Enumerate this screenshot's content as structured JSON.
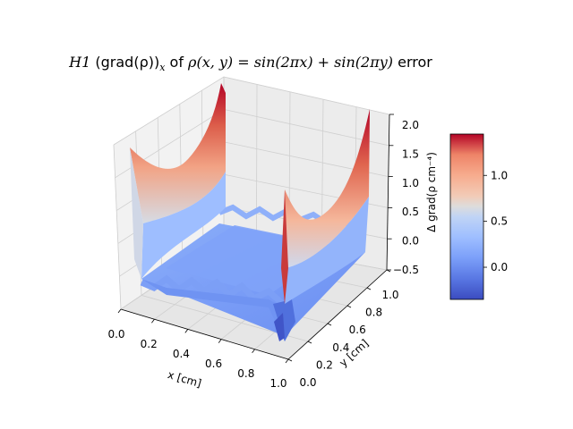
{
  "title": {
    "prefix": "H1",
    "grad": "(grad(ρ))",
    "sub": "x",
    "of": "of",
    "func": "ρ(x, y) = sin(2πx) + sin(2πy)",
    "suffix": "error"
  },
  "chart_data": {
    "type": "surface3d",
    "xlabel": "x [cm]",
    "ylabel": "y [cm]",
    "zlabel": "Δ grad(ρ cm⁻⁴)",
    "xlim": [
      0.0,
      1.0
    ],
    "ylim": [
      0.0,
      1.0
    ],
    "zlim": [
      -0.5,
      2.0
    ],
    "x_ticks": [
      "0.0",
      "0.2",
      "0.4",
      "0.6",
      "0.8",
      "1.0"
    ],
    "y_ticks": [
      "0.0",
      "0.2",
      "0.4",
      "0.6",
      "0.8",
      "1.0"
    ],
    "z_ticks": [
      "−0.5",
      "0.0",
      "0.5",
      "1.0",
      "1.5",
      "2.0"
    ],
    "colormap": "coolwarm",
    "colorbar": {
      "range": [
        -0.35,
        1.45
      ],
      "ticks": [
        "0.0",
        "0.5",
        "1.0"
      ],
      "tick_values": [
        0.0,
        0.5,
        1.0
      ]
    },
    "surface": {
      "description_free": false,
      "x_edge_peaks_z": [
        2.0,
        2.0
      ],
      "interior_z": 0.0,
      "min_z": -0.4
    },
    "grid": true
  }
}
